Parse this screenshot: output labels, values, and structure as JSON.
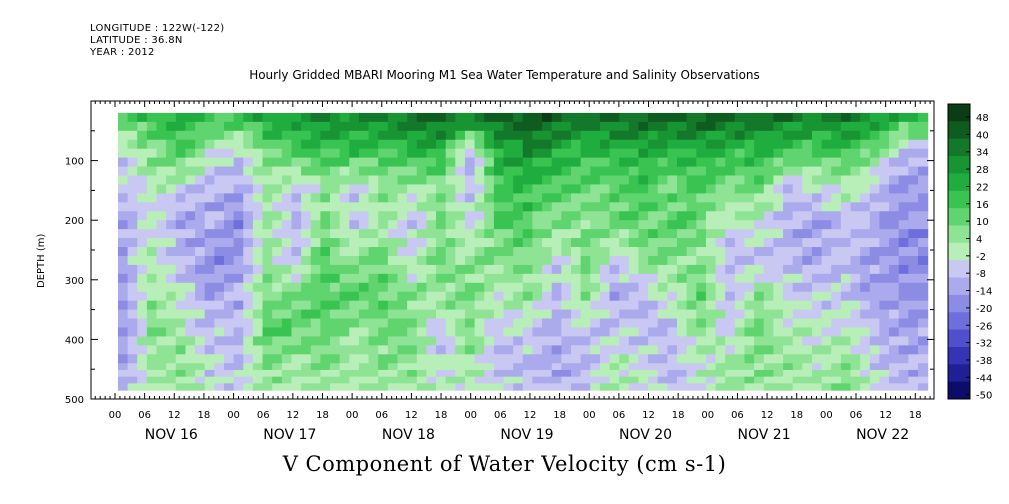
{
  "header": {
    "longitude": "LONGITUDE : 122W(-122)",
    "latitude": "LATITUDE : 36.8N",
    "year": "YEAR : 2012"
  },
  "chart_data": {
    "type": "heatmap",
    "title": "Hourly Gridded MBARI Mooring M1 Sea Water Temperature and Salinity Observations",
    "xlabel": "V Component of Water Velocity (cm s-1)",
    "ylabel": "DEPTH (m)",
    "ylim": [
      500,
      0
    ],
    "y_ticks": [
      "100",
      "200",
      "300",
      "400",
      "500"
    ],
    "x_hour_ticks": [
      "00",
      "06",
      "12",
      "18",
      "00",
      "06",
      "12",
      "18",
      "00",
      "06",
      "12",
      "18",
      "00",
      "06",
      "12",
      "18",
      "00",
      "06",
      "12",
      "18",
      "00",
      "06",
      "12",
      "18",
      "00",
      "06",
      "12",
      "18"
    ],
    "x_dates": [
      "NOV 16",
      "NOV 17",
      "NOV 18",
      "NOV 19",
      "NOV 20",
      "NOV 21",
      "NOV 22"
    ],
    "colorbar": {
      "labels": [
        "48",
        "40",
        "34",
        "28",
        "22",
        "16",
        "10",
        "4",
        "-2",
        "-8",
        "-14",
        "-20",
        "-26",
        "-32",
        "-38",
        "-44",
        "-50"
      ],
      "colors": [
        "#0b3d14",
        "#0f5c20",
        "#13782a",
        "#189433",
        "#20ad3f",
        "#39c452",
        "#5fd46f",
        "#8fe395",
        "#b8efb8",
        "#c8c8f2",
        "#aaaaec",
        "#8c8ce4",
        "#6e6edc",
        "#5050cc",
        "#3434b4",
        "#1f1f96",
        "#0c0c6a"
      ]
    },
    "data_extent": {
      "depth_top_m": 20,
      "depth_bottom_m": 485
    },
    "columns": [
      {
        "day": 16,
        "hour": 3,
        "profile": [
          12,
          -4,
          -6,
          -10,
          -12,
          -14,
          -14,
          -10,
          -8
        ]
      },
      {
        "day": 16,
        "hour": 9,
        "profile": [
          20,
          8,
          2,
          -2,
          4,
          6,
          8,
          4,
          2
        ]
      },
      {
        "day": 16,
        "hour": 15,
        "profile": [
          24,
          14,
          -4,
          -10,
          -6,
          -2,
          4,
          8,
          4
        ]
      },
      {
        "day": 16,
        "hour": 21,
        "profile": [
          20,
          2,
          -8,
          -12,
          -16,
          -12,
          -6,
          -4,
          -2
        ]
      },
      {
        "day": 17,
        "hour": 3,
        "profile": [
          18,
          -6,
          -10,
          -16,
          -14,
          -10,
          -8,
          -6,
          -4
        ]
      },
      {
        "day": 17,
        "hour": 9,
        "profile": [
          26,
          10,
          6,
          2,
          6,
          10,
          14,
          8,
          6
        ]
      },
      {
        "day": 17,
        "hour": 15,
        "profile": [
          28,
          14,
          -6,
          -8,
          -4,
          8,
          12,
          6,
          2
        ]
      },
      {
        "day": 17,
        "hour": 21,
        "profile": [
          34,
          20,
          6,
          10,
          14,
          18,
          12,
          8,
          4
        ]
      },
      {
        "day": 18,
        "hour": 3,
        "profile": [
          32,
          18,
          -6,
          -4,
          6,
          12,
          6,
          4,
          2
        ]
      },
      {
        "day": 18,
        "hour": 9,
        "profile": [
          34,
          16,
          8,
          4,
          12,
          14,
          10,
          6,
          2
        ]
      },
      {
        "day": 18,
        "hour": 15,
        "profile": [
          38,
          20,
          2,
          -6,
          -2,
          6,
          10,
          8,
          4
        ]
      },
      {
        "day": 18,
        "hour": 21,
        "profile": [
          40,
          22,
          10,
          8,
          12,
          6,
          -6,
          -4,
          2
        ]
      },
      {
        "day": 19,
        "hour": 3,
        "profile": [
          36,
          -12,
          -8,
          -2,
          6,
          10,
          8,
          4,
          2
        ]
      },
      {
        "day": 19,
        "hour": 9,
        "profile": [
          40,
          26,
          18,
          14,
          8,
          2,
          -6,
          -8,
          -2
        ]
      },
      {
        "day": 19,
        "hour": 15,
        "profile": [
          46,
          30,
          20,
          16,
          10,
          6,
          -2,
          -8,
          -4
        ]
      },
      {
        "day": 19,
        "hour": 21,
        "profile": [
          42,
          26,
          16,
          6,
          -4,
          -8,
          -10,
          -12,
          -6
        ]
      },
      {
        "day": 20,
        "hour": 3,
        "profile": [
          38,
          18,
          10,
          8,
          12,
          6,
          -6,
          -8,
          -4
        ]
      },
      {
        "day": 20,
        "hour": 9,
        "profile": [
          40,
          22,
          14,
          10,
          -6,
          -10,
          -4,
          2,
          4
        ]
      },
      {
        "day": 20,
        "hour": 15,
        "profile": [
          42,
          24,
          16,
          12,
          8,
          -8,
          -6,
          -2,
          2
        ]
      },
      {
        "day": 20,
        "hour": 21,
        "profile": [
          40,
          20,
          12,
          14,
          6,
          2,
          -6,
          -10,
          -8
        ]
      },
      {
        "day": 21,
        "hour": 3,
        "profile": [
          42,
          24,
          14,
          10,
          8,
          12,
          6,
          2,
          -2
        ]
      },
      {
        "day": 21,
        "hour": 9,
        "profile": [
          40,
          20,
          8,
          -4,
          -8,
          -6,
          -2,
          4,
          6
        ]
      },
      {
        "day": 21,
        "hour": 15,
        "profile": [
          38,
          22,
          10,
          2,
          -6,
          6,
          10,
          8,
          4
        ]
      },
      {
        "day": 21,
        "hour": 21,
        "profile": [
          36,
          16,
          -6,
          -10,
          -8,
          -2,
          4,
          6,
          2
        ]
      },
      {
        "day": 22,
        "hour": 3,
        "profile": [
          34,
          14,
          -4,
          -12,
          -10,
          -6,
          -2,
          2,
          4
        ]
      },
      {
        "day": 22,
        "hour": 9,
        "profile": [
          36,
          18,
          2,
          -6,
          -8,
          -4,
          2,
          8,
          10
        ]
      },
      {
        "day": 22,
        "hour": 15,
        "profile": [
          32,
          10,
          -8,
          -10,
          -12,
          -14,
          -8,
          -4,
          -2
        ]
      },
      {
        "day": 22,
        "hour": 21,
        "profile": [
          22,
          -8,
          -14,
          -16,
          -18,
          -14,
          -12,
          -10,
          -8
        ]
      }
    ],
    "profile_depths_m": [
      20,
      80,
      140,
      200,
      260,
      320,
      380,
      440,
      485
    ]
  }
}
